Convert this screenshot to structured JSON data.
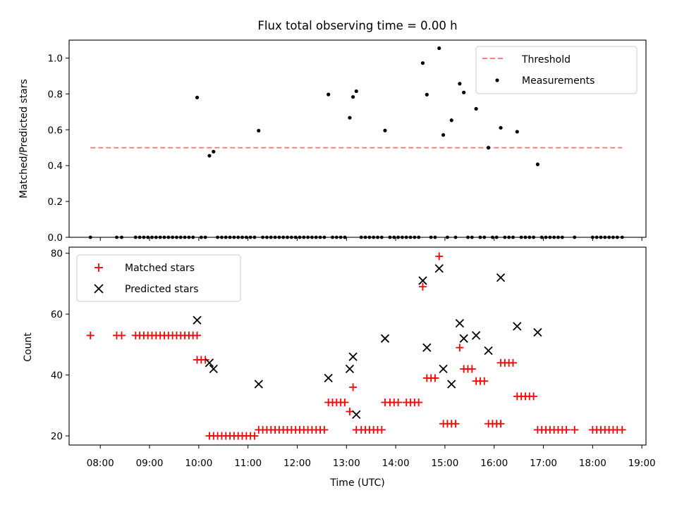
{
  "chart_data": [
    {
      "type": "line+scatter",
      "title": "Flux total observing time = 0.00 h",
      "ylabel": "Matched/Predicted stars",
      "ylim": [
        0,
        1.1
      ],
      "yticks": [
        "0.0",
        "0.2",
        "0.4",
        "0.6",
        "0.8",
        "1.0"
      ],
      "legend": {
        "position": "top-right",
        "entries": [
          "Threshold",
          "Measurements"
        ]
      },
      "threshold": {
        "name": "Threshold",
        "value": 0.5,
        "x_range": [
          "07:48",
          "18:36"
        ],
        "color": "#ff7f7f",
        "style": "dashed"
      },
      "measurements": {
        "name": "Measurements",
        "color": "#000000",
        "points": [
          [
            "09:58",
            0.78
          ],
          [
            "10:13",
            0.455
          ],
          [
            "10:18",
            0.478
          ],
          [
            "11:13",
            0.595
          ],
          [
            "12:38",
            0.797
          ],
          [
            "13:04",
            0.667
          ],
          [
            "13:08",
            0.783
          ],
          [
            "13:12",
            0.815
          ],
          [
            "13:47",
            0.596
          ],
          [
            "14:33",
            0.972
          ],
          [
            "14:38",
            0.796
          ],
          [
            "14:53",
            1.055
          ],
          [
            "14:58",
            0.571
          ],
          [
            "15:08",
            0.653
          ],
          [
            "15:18",
            0.857
          ],
          [
            "15:23",
            0.808
          ],
          [
            "15:38",
            0.717
          ],
          [
            "15:53",
            0.5
          ],
          [
            "16:08",
            0.611
          ],
          [
            "16:28",
            0.589
          ],
          [
            "16:53",
            0.407
          ]
        ],
        "zero_times": [
          "07:48",
          "08:20",
          "08:26",
          "08:43",
          "08:48",
          "08:53",
          "08:58",
          "09:03",
          "09:08",
          "09:13",
          "09:18",
          "09:23",
          "09:28",
          "09:33",
          "09:38",
          "09:43",
          "09:48",
          "09:53",
          "10:03",
          "10:08",
          "10:23",
          "10:28",
          "10:33",
          "10:38",
          "10:43",
          "10:48",
          "10:53",
          "10:58",
          "11:03",
          "11:08",
          "11:18",
          "11:23",
          "11:28",
          "11:33",
          "11:38",
          "11:43",
          "11:48",
          "11:53",
          "11:58",
          "12:03",
          "12:08",
          "12:13",
          "12:18",
          "12:23",
          "12:28",
          "12:33",
          "12:43",
          "12:48",
          "12:53",
          "12:58",
          "13:18",
          "13:23",
          "13:28",
          "13:33",
          "13:38",
          "13:43",
          "13:53",
          "13:58",
          "14:03",
          "14:08",
          "14:13",
          "14:18",
          "14:23",
          "14:28",
          "14:43",
          "14:48",
          "15:03",
          "15:13",
          "15:28",
          "15:33",
          "15:43",
          "15:48",
          "15:58",
          "16:03",
          "16:13",
          "16:18",
          "16:23",
          "16:33",
          "16:38",
          "16:43",
          "16:48",
          "16:58",
          "17:03",
          "17:08",
          "17:13",
          "17:18",
          "17:23",
          "17:38",
          "18:00",
          "18:05",
          "18:10",
          "18:15",
          "18:20",
          "18:25",
          "18:30",
          "18:36"
        ]
      }
    },
    {
      "type": "scatter",
      "xlabel": "Time (UTC)",
      "ylabel": "Count",
      "ylim": [
        17,
        82
      ],
      "yticks": [
        "20",
        "40",
        "60",
        "80"
      ],
      "xticks": [
        "08:00",
        "09:00",
        "10:00",
        "11:00",
        "12:00",
        "13:00",
        "14:00",
        "15:00",
        "16:00",
        "17:00",
        "18:00",
        "19:00"
      ],
      "xlim": [
        "07:22",
        "19:05"
      ],
      "legend": {
        "position": "top-left",
        "entries": [
          "Matched stars",
          "Predicted stars"
        ]
      },
      "series": [
        {
          "name": "Matched stars",
          "marker": "plus",
          "color": "#ff0000",
          "groups": [
            {
              "y": 53,
              "x": [
                "07:48",
                "08:20",
                "08:26",
                "08:43",
                "08:48",
                "08:53",
                "08:58",
                "09:03",
                "09:08",
                "09:13",
                "09:18",
                "09:23",
                "09:28",
                "09:33",
                "09:38",
                "09:43",
                "09:48",
                "09:53",
                "09:58"
              ]
            },
            {
              "y": 45,
              "x": [
                "09:58",
                "10:03",
                "10:08"
              ]
            },
            {
              "y": 20,
              "x": [
                "10:13",
                "10:18",
                "10:23",
                "10:28",
                "10:33",
                "10:38",
                "10:43",
                "10:48",
                "10:53",
                "10:58",
                "11:03",
                "11:08"
              ]
            },
            {
              "y": 22,
              "x": [
                "11:13",
                "11:18",
                "11:23",
                "11:28",
                "11:33",
                "11:38",
                "11:43",
                "11:48",
                "11:53",
                "11:58",
                "12:03",
                "12:08",
                "12:13",
                "12:18",
                "12:23",
                "12:28",
                "12:33"
              ]
            },
            {
              "y": 31,
              "x": [
                "12:38",
                "12:43",
                "12:48",
                "12:53",
                "12:58"
              ]
            },
            {
              "y": 28,
              "x": [
                "13:04"
              ]
            },
            {
              "y": 36,
              "x": [
                "13:08"
              ]
            },
            {
              "y": 22,
              "x": [
                "13:12",
                "13:18",
                "13:23",
                "13:28",
                "13:33",
                "13:38",
                "13:43"
              ]
            },
            {
              "y": 31,
              "x": [
                "13:47",
                "13:53",
                "13:58",
                "14:03",
                "14:13",
                "14:18",
                "14:23",
                "14:28"
              ]
            },
            {
              "y": 69,
              "x": [
                "14:33"
              ]
            },
            {
              "y": 39,
              "x": [
                "14:38",
                "14:43",
                "14:48"
              ]
            },
            {
              "y": 79,
              "x": [
                "14:53"
              ]
            },
            {
              "y": 24,
              "x": [
                "14:58",
                "15:03",
                "15:08",
                "15:13"
              ]
            },
            {
              "y": 49,
              "x": [
                "15:18"
              ]
            },
            {
              "y": 42,
              "x": [
                "15:23",
                "15:28",
                "15:33"
              ]
            },
            {
              "y": 38,
              "x": [
                "15:38",
                "15:43",
                "15:48"
              ]
            },
            {
              "y": 24,
              "x": [
                "15:53",
                "15:58",
                "16:03",
                "16:08"
              ]
            },
            {
              "y": 44,
              "x": [
                "16:08",
                "16:13",
                "16:18",
                "16:23"
              ]
            },
            {
              "y": 33,
              "x": [
                "16:28",
                "16:33",
                "16:38",
                "16:43",
                "16:48"
              ]
            },
            {
              "y": 22,
              "x": [
                "16:53",
                "16:58",
                "17:03",
                "17:08",
                "17:13",
                "17:18",
                "17:23",
                "17:28",
                "17:38",
                "18:00",
                "18:05",
                "18:10",
                "18:15",
                "18:20",
                "18:25",
                "18:30",
                "18:36"
              ]
            }
          ]
        },
        {
          "name": "Predicted stars",
          "marker": "x",
          "color": "#000000",
          "points": [
            [
              "09:58",
              58
            ],
            [
              "10:13",
              44
            ],
            [
              "10:18",
              42
            ],
            [
              "11:13",
              37
            ],
            [
              "12:38",
              39
            ],
            [
              "13:04",
              42
            ],
            [
              "13:08",
              46
            ],
            [
              "13:12",
              27
            ],
            [
              "13:47",
              52
            ],
            [
              "14:33",
              71
            ],
            [
              "14:38",
              49
            ],
            [
              "14:53",
              75
            ],
            [
              "14:58",
              42
            ],
            [
              "15:08",
              37
            ],
            [
              "15:18",
              57
            ],
            [
              "15:23",
              52
            ],
            [
              "15:38",
              53
            ],
            [
              "15:53",
              48
            ],
            [
              "16:08",
              72
            ],
            [
              "16:28",
              56
            ],
            [
              "16:53",
              54
            ]
          ]
        }
      ]
    }
  ]
}
